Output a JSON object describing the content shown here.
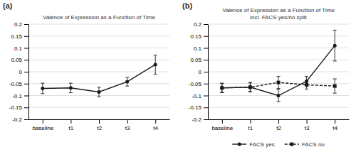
{
  "chart_data": [
    {
      "type": "line",
      "title": "Valence of Expression as a Function of Time",
      "annotations": [
        "(a)"
      ],
      "categories": [
        "baseline",
        "t1",
        "t2",
        "t3",
        "t4"
      ],
      "values": [
        -0.07,
        -0.068,
        -0.085,
        -0.042,
        0.03
      ],
      "errors": [
        0.022,
        0.02,
        0.02,
        0.018,
        0.04
      ],
      "color": "#1a1a1a",
      "marker": "circle",
      "line_style": "solid",
      "ylim": [
        -0.2,
        0.2
      ],
      "yticks": [
        -0.2,
        -0.15,
        -0.1,
        -0.05,
        0,
        0.05,
        0.1,
        0.15,
        0.2
      ],
      "grid": true
    },
    {
      "type": "line",
      "title": "Valence of Expression as a Function of Time\nincl. FACS yes/no split",
      "annotations": [
        "(b)"
      ],
      "categories": [
        "baseline",
        "t1",
        "t2",
        "t3",
        "t4"
      ],
      "series": [
        {
          "name": "FACS yes",
          "values": [
            -0.068,
            -0.065,
            -0.1,
            -0.04,
            0.11
          ],
          "errors": [
            0.02,
            0.02,
            0.025,
            0.02,
            0.065
          ],
          "color": "#1a1a1a",
          "marker": "circle",
          "line_style": "solid"
        },
        {
          "name": "FACS no",
          "values": [
            -0.068,
            -0.065,
            -0.045,
            -0.055,
            -0.06
          ],
          "errors": [
            0.018,
            0.018,
            0.025,
            0.018,
            0.03
          ],
          "color": "#1a1a1a",
          "marker": "square",
          "line_style": "dashed"
        }
      ],
      "ylim": [
        -0.2,
        0.2
      ],
      "yticks": [
        -0.2,
        -0.15,
        -0.1,
        -0.05,
        0,
        0.05,
        0.1,
        0.15,
        0.2
      ],
      "grid": true,
      "legend": "bottom"
    }
  ]
}
